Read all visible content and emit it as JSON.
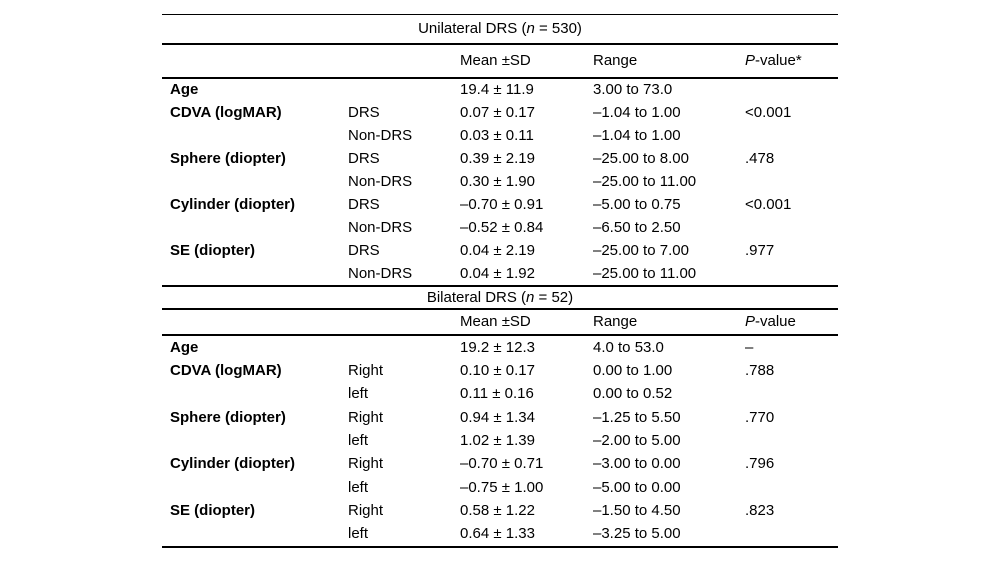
{
  "document": {
    "background": "#ffffff",
    "text_color": "#000000",
    "rule_color": "#000000"
  },
  "table": {
    "sections": [
      {
        "id": "unilateral",
        "title": {
          "pre": "Unilateral DRS (",
          "i": "n",
          "post": " = 530)"
        },
        "headers": [
          {
            "i": "",
            "t": ""
          },
          {
            "i": "",
            "t": ""
          },
          {
            "i": "",
            "t": "Mean ±SD"
          },
          {
            "i": "",
            "t": "Range"
          },
          {
            "i": "P",
            "t": "-value*"
          }
        ],
        "rows": [
          {
            "label": "Age",
            "sub": "",
            "mean": "19.4 ± 11.9",
            "range": "3.00 to 73.0",
            "p": ""
          },
          {
            "label": "CDVA (logMAR)",
            "sub": "DRS",
            "mean": "0.07 ± 0.17",
            "range": "–1.04 to 1.00",
            "p": "<0.001"
          },
          {
            "label": "",
            "sub": "Non-DRS",
            "mean": "0.03 ± 0.11",
            "range": "–1.04 to 1.00",
            "p": ""
          },
          {
            "label": "Sphere (diopter)",
            "sub": "DRS",
            "mean": "0.39 ± 2.19",
            "range": "–25.00 to 8.00",
            "p": ".478"
          },
          {
            "label": "",
            "sub": "Non-DRS",
            "mean": "0.30 ± 1.90",
            "range": "–25.00 to 11.00",
            "p": ""
          },
          {
            "label": "Cylinder (diopter)",
            "sub": "DRS",
            "mean": "–0.70 ± 0.91",
            "range": "–5.00 to 0.75",
            "p": "<0.001"
          },
          {
            "label": "",
            "sub": "Non-DRS",
            "mean": "–0.52 ± 0.84",
            "range": "–6.50 to 2.50",
            "p": ""
          },
          {
            "label": "SE (diopter)",
            "sub": "DRS",
            "mean": "0.04 ± 2.19",
            "range": "–25.00 to 7.00",
            "p": ".977"
          },
          {
            "label": "",
            "sub": "Non-DRS",
            "mean": "0.04 ± 1.92",
            "range": "–25.00 to 11.00",
            "p": ""
          }
        ]
      },
      {
        "id": "bilateral",
        "title": {
          "pre": "Bilateral DRS (",
          "i": "n",
          "post": " = 52)"
        },
        "headers": [
          {
            "i": "",
            "t": ""
          },
          {
            "i": "",
            "t": ""
          },
          {
            "i": "",
            "t": "Mean ±SD"
          },
          {
            "i": "",
            "t": "Range"
          },
          {
            "i": "P",
            "t": "-value"
          }
        ],
        "rows": [
          {
            "label": "Age",
            "sub": "",
            "mean": "19.2 ± 12.3",
            "range": "4.0 to 53.0",
            "p": "–"
          },
          {
            "label": "CDVA (logMAR)",
            "sub": "Right",
            "mean": "0.10 ± 0.17",
            "range": "0.00 to 1.00",
            "p": ".788"
          },
          {
            "label": "",
            "sub": "left",
            "mean": "0.11 ± 0.16",
            "range": "0.00 to 0.52",
            "p": ""
          },
          {
            "label": "Sphere (diopter)",
            "sub": "Right",
            "mean": "0.94 ± 1.34",
            "range": "–1.25 to 5.50",
            "p": ".770"
          },
          {
            "label": "",
            "sub": "left",
            "mean": "1.02 ± 1.39",
            "range": "–2.00 to 5.00",
            "p": ""
          },
          {
            "label": "Cylinder (diopter)",
            "sub": "Right",
            "mean": "–0.70 ± 0.71",
            "range": "–3.00 to 0.00",
            "p": ".796"
          },
          {
            "label": "",
            "sub": "left",
            "mean": "–0.75 ± 1.00",
            "range": "–5.00 to 0.00",
            "p": ""
          },
          {
            "label": "SE (diopter)",
            "sub": "Right",
            "mean": "0.58 ± 1.22",
            "range": "–1.50 to 4.50",
            "p": ".823"
          },
          {
            "label": "",
            "sub": "left",
            "mean": "0.64 ± 1.33",
            "range": "–3.25 to 5.00",
            "p": ""
          }
        ]
      }
    ]
  }
}
